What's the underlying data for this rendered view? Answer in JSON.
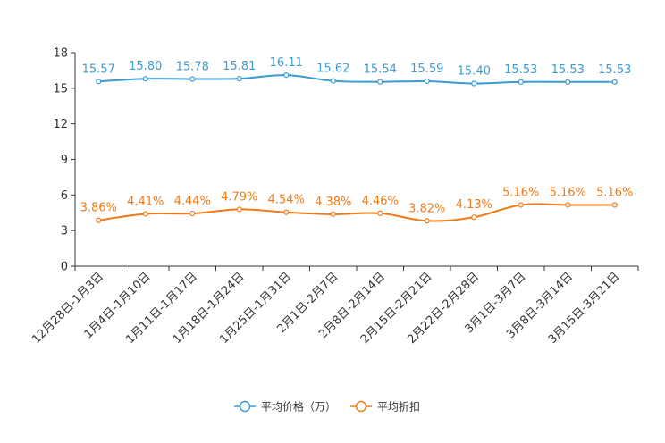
{
  "chart_data": {
    "type": "line",
    "title": "",
    "xlabel": "",
    "ylabel": "",
    "ylim": [
      0,
      18
    ],
    "yticks": [
      0,
      3,
      6,
      9,
      12,
      15,
      18
    ],
    "categories": [
      "12月28日-1月3日",
      "1月4日-1月10日",
      "1月11日-1月17日",
      "1月18日-1月24日",
      "1月25日-1月31日",
      "2月1日-2月7日",
      "2月8日-2月14日",
      "2月15日-2月21日",
      "2月22日-2月28日",
      "3月1日-3月7日",
      "3月8日-3月14日",
      "3月15日-3月21日"
    ],
    "series": [
      {
        "name": "平均价格（万）",
        "color": "#3d9bd0",
        "values": [
          15.57,
          15.8,
          15.78,
          15.81,
          16.11,
          15.62,
          15.54,
          15.59,
          15.4,
          15.53,
          15.53,
          15.53
        ],
        "labels": [
          "15.57",
          "15.80",
          "15.78",
          "15.81",
          "16.11",
          "15.62",
          "15.54",
          "15.59",
          "15.40",
          "15.53",
          "15.53",
          "15.53"
        ]
      },
      {
        "name": "平均折扣",
        "color": "#f07a17",
        "values": [
          3.86,
          4.41,
          4.44,
          4.79,
          4.54,
          4.38,
          4.46,
          3.82,
          4.13,
          5.16,
          5.16,
          5.16
        ],
        "labels": [
          "3.86%",
          "4.41%",
          "4.44%",
          "4.79%",
          "4.54%",
          "4.38%",
          "4.46%",
          "3.82%",
          "4.13%",
          "5.16%",
          "5.16%",
          "5.16%"
        ]
      }
    ],
    "legend_position": "bottom-center",
    "grid": false
  }
}
